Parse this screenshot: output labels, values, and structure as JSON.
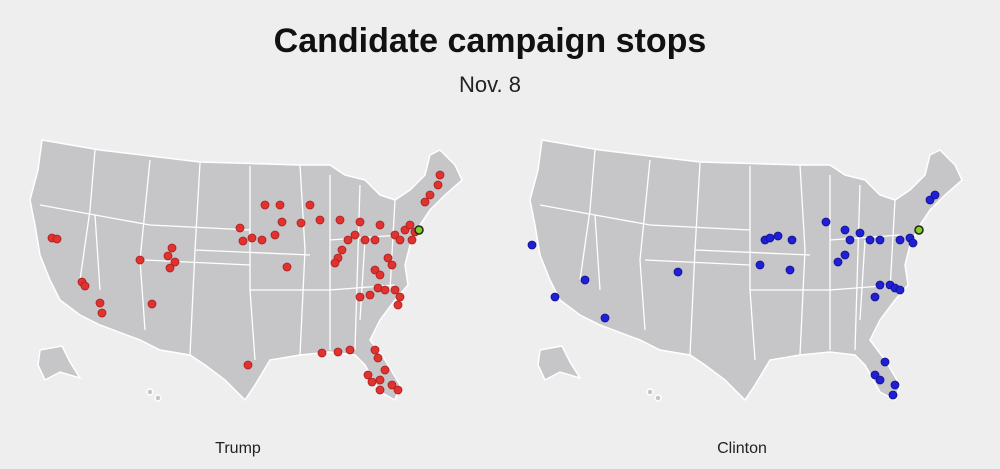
{
  "header": {
    "title": "Candidate campaign stops",
    "subtitle": "Nov. 8"
  },
  "maps": [
    {
      "label": "Trump"
    },
    {
      "label": "Clinton"
    }
  ]
}
